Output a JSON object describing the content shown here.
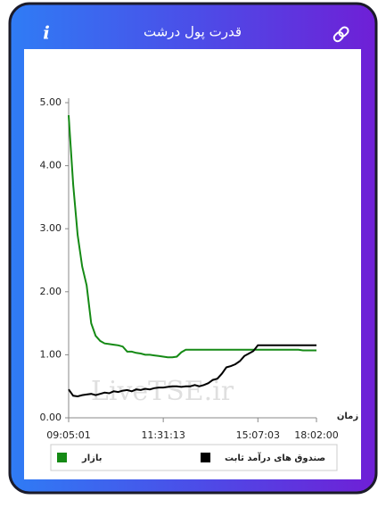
{
  "header": {
    "title": "قدرت پول درشت",
    "info": "i"
  },
  "watermark": "LiveTSE.ir",
  "chart_data": {
    "type": "line",
    "x_label": "زمان",
    "categories": [
      "09:05:01",
      null,
      null,
      null,
      null,
      null,
      null,
      null,
      null,
      null,
      null,
      null,
      null,
      null,
      null,
      null,
      null,
      null,
      null,
      null,
      null,
      "11:31:13",
      null,
      null,
      null,
      null,
      null,
      null,
      null,
      null,
      null,
      null,
      null,
      null,
      null,
      null,
      null,
      null,
      null,
      null,
      null,
      null,
      "15:07:03",
      null,
      null,
      null,
      null,
      null,
      null,
      null,
      null,
      null,
      null,
      null,
      null,
      "18:02:00"
    ],
    "xticks": [
      "09:05:01",
      "11:31:13",
      "15:07:03",
      "18:02:00"
    ],
    "series": [
      {
        "name": "بازار",
        "color": "#158a15",
        "values": [
          4.8,
          3.7,
          2.9,
          2.4,
          2.1,
          1.5,
          1.3,
          1.22,
          1.18,
          1.17,
          1.16,
          1.15,
          1.13,
          1.05,
          1.05,
          1.03,
          1.02,
          1.0,
          1.0,
          0.99,
          0.98,
          0.97,
          0.96,
          0.96,
          0.97,
          1.04,
          1.08,
          1.08,
          1.08,
          1.08,
          1.08,
          1.08,
          1.08,
          1.08,
          1.08,
          1.08,
          1.08,
          1.08,
          1.08,
          1.08,
          1.08,
          1.08,
          1.08,
          1.08,
          1.08,
          1.08,
          1.08,
          1.08,
          1.08,
          1.08,
          1.08,
          1.08,
          1.07,
          1.07,
          1.07,
          1.07
        ]
      },
      {
        "name": "صندوق های درآمد ثابت",
        "color": "#000000",
        "values": [
          0.45,
          0.35,
          0.34,
          0.36,
          0.37,
          0.38,
          0.36,
          0.38,
          0.4,
          0.39,
          0.42,
          0.41,
          0.43,
          0.44,
          0.42,
          0.45,
          0.44,
          0.46,
          0.45,
          0.47,
          0.48,
          0.48,
          0.49,
          0.5,
          0.5,
          0.49,
          0.5,
          0.5,
          0.52,
          0.5,
          0.52,
          0.55,
          0.6,
          0.62,
          0.7,
          0.8,
          0.82,
          0.85,
          0.9,
          0.98,
          1.02,
          1.06,
          1.15,
          1.15,
          1.15,
          1.15,
          1.15,
          1.15,
          1.15,
          1.15,
          1.15,
          1.15,
          1.15,
          1.15,
          1.15,
          1.15
        ]
      }
    ],
    "ylim": [
      0,
      5
    ],
    "yticks": [
      {
        "value": 0,
        "label": "0.00"
      },
      {
        "value": 1,
        "label": "1.00"
      },
      {
        "value": 2,
        "label": "2.00"
      },
      {
        "value": 3,
        "label": "3.00"
      },
      {
        "value": 4,
        "label": "4.00"
      },
      {
        "value": 5,
        "label": "5.00"
      }
    ]
  }
}
